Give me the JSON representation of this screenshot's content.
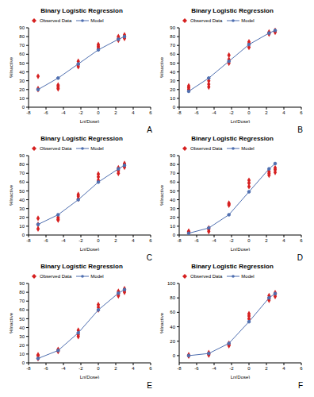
{
  "chart_data": [
    {
      "type": "line",
      "title": "Binary Logistic Regression",
      "annotation": "A",
      "x_label": "Ln(Dose)",
      "y_label": "%Inactive",
      "xlim": [
        -8,
        6
      ],
      "xticks": [
        -8,
        -6,
        -4,
        -2,
        0,
        2,
        4,
        6
      ],
      "ylim": [
        0,
        90
      ],
      "yticks": [
        0,
        10,
        20,
        30,
        40,
        50,
        60,
        70,
        80,
        90
      ],
      "grid": false,
      "legend": "upper left",
      "series": [
        {
          "name": "Observed Data",
          "type": "scatter",
          "color": "#d62020",
          "marker": "diamond",
          "x": [
            -6.91,
            -6.91,
            -6.91,
            -4.61,
            -4.61,
            -4.61,
            -2.3,
            -2.3,
            -2.3,
            0,
            0,
            0,
            2.3,
            2.3,
            2.3,
            3,
            3,
            3
          ],
          "values": [
            20,
            21,
            35,
            21,
            23,
            25,
            46,
            48,
            52,
            67,
            69,
            71,
            76,
            78,
            80,
            78,
            80,
            82
          ]
        },
        {
          "name": "Model",
          "type": "line",
          "color": "#4f6fb0",
          "marker": "circle",
          "x": [
            -6.91,
            -4.61,
            -2.3,
            0,
            2.3,
            3
          ],
          "values": [
            20,
            33,
            49,
            65,
            77,
            80
          ]
        }
      ]
    },
    {
      "type": "line",
      "title": "Binary Logistic Regression",
      "annotation": "B",
      "x_label": "Ln(Dose)",
      "y_label": "%Inactive",
      "xlim": [
        -8,
        6
      ],
      "xticks": [
        -8,
        -6,
        -4,
        -2,
        0,
        2,
        4,
        6
      ],
      "ylim": [
        0,
        90
      ],
      "yticks": [
        0,
        10,
        20,
        30,
        40,
        50,
        60,
        70,
        80,
        90
      ],
      "grid": false,
      "legend": "upper left",
      "series": [
        {
          "name": "Observed Data",
          "type": "scatter",
          "color": "#d62020",
          "marker": "diamond",
          "x": [
            -6.91,
            -6.91,
            -6.91,
            -4.61,
            -4.61,
            -4.61,
            -2.3,
            -2.3,
            -2.3,
            0,
            0,
            0,
            2.3,
            2.3,
            2.3,
            3,
            3,
            3
          ],
          "values": [
            20,
            22,
            24,
            23,
            26,
            30,
            50,
            54,
            59,
            68,
            72,
            74,
            83,
            84,
            85,
            85,
            86,
            87
          ]
        },
        {
          "name": "Model",
          "type": "line",
          "color": "#4f6fb0",
          "marker": "circle",
          "x": [
            -6.91,
            -4.61,
            -2.3,
            0,
            2.3,
            3
          ],
          "values": [
            18,
            33,
            52,
            71,
            84,
            87
          ]
        }
      ]
    },
    {
      "type": "line",
      "title": "Binary Logistic Regression",
      "annotation": "C",
      "x_label": "Ln(Dose)",
      "y_label": "%Inactive",
      "xlim": [
        -8,
        6
      ],
      "xticks": [
        -8,
        -6,
        -4,
        -2,
        0,
        2,
        4,
        6
      ],
      "ylim": [
        0,
        90
      ],
      "yticks": [
        0,
        10,
        20,
        30,
        40,
        50,
        60,
        70,
        80,
        90
      ],
      "grid": false,
      "legend": "upper left",
      "series": [
        {
          "name": "Observed Data",
          "type": "scatter",
          "color": "#d62020",
          "marker": "diamond",
          "x": [
            -6.91,
            -6.91,
            -6.91,
            -4.61,
            -4.61,
            -4.61,
            -2.3,
            -2.3,
            -2.3,
            0,
            0,
            0,
            2.3,
            2.3,
            2.3,
            3,
            3,
            3
          ],
          "values": [
            7,
            12,
            19,
            17,
            18,
            20,
            41,
            44,
            46,
            62,
            66,
            69,
            70,
            73,
            76,
            77,
            80,
            81
          ]
        },
        {
          "name": "Model",
          "type": "line",
          "color": "#4f6fb0",
          "marker": "circle",
          "x": [
            -6.91,
            -4.61,
            -2.3,
            0,
            2.3,
            3
          ],
          "values": [
            12,
            23,
            40,
            60,
            75,
            79
          ]
        }
      ]
    },
    {
      "type": "line",
      "title": "Binary Logistic Regression",
      "annotation": "D",
      "x_label": "Ln(Dose)",
      "y_label": "%Inactive",
      "xlim": [
        -8,
        6
      ],
      "xticks": [
        -8,
        -6,
        -4,
        -2,
        0,
        2,
        4,
        6
      ],
      "ylim": [
        0,
        90
      ],
      "yticks": [
        0,
        10,
        20,
        30,
        40,
        50,
        60,
        70,
        80,
        90
      ],
      "grid": false,
      "legend": "upper left",
      "series": [
        {
          "name": "Observed Data",
          "type": "scatter",
          "color": "#d62020",
          "marker": "diamond",
          "x": [
            -6.91,
            -6.91,
            -6.91,
            -4.61,
            -4.61,
            -4.61,
            -2.3,
            -2.3,
            -2.3,
            0,
            0,
            0,
            2.3,
            2.3,
            2.3,
            3,
            3,
            3
          ],
          "values": [
            3,
            4,
            4,
            4,
            6,
            8,
            34,
            35,
            36,
            55,
            59,
            62,
            68,
            70,
            72,
            71,
            74,
            76
          ]
        },
        {
          "name": "Model",
          "type": "line",
          "color": "#4f6fb0",
          "marker": "circle",
          "x": [
            -6.91,
            -4.61,
            -2.3,
            0,
            2.3,
            3
          ],
          "values": [
            2,
            8,
            23,
            49,
            75,
            81
          ]
        }
      ]
    },
    {
      "type": "line",
      "title": "Binary Logistic Regression",
      "annotation": "E",
      "x_label": "Ln(Dose)",
      "y_label": "%Inactive",
      "xlim": [
        -8,
        6
      ],
      "xticks": [
        -8,
        -6,
        -4,
        -2,
        0,
        2,
        4,
        6
      ],
      "ylim": [
        0,
        90
      ],
      "yticks": [
        0,
        10,
        20,
        30,
        40,
        50,
        60,
        70,
        80,
        90
      ],
      "grid": false,
      "legend": "upper left",
      "series": [
        {
          "name": "Observed Data",
          "type": "scatter",
          "color": "#d62020",
          "marker": "diamond",
          "x": [
            -6.91,
            -6.91,
            -6.91,
            -4.61,
            -4.61,
            -4.61,
            -2.3,
            -2.3,
            -2.3,
            0,
            0,
            0,
            2.3,
            2.3,
            2.3,
            3,
            3,
            3
          ],
          "values": [
            5,
            8,
            9,
            13,
            14,
            15,
            30,
            32,
            37,
            60,
            63,
            66,
            76,
            78,
            81,
            80,
            82,
            84
          ]
        },
        {
          "name": "Model",
          "type": "line",
          "color": "#4f6fb0",
          "marker": "circle",
          "x": [
            -6.91,
            -4.61,
            -2.3,
            0,
            2.3,
            3
          ],
          "values": [
            5,
            14,
            34,
            60,
            79,
            83
          ]
        }
      ]
    },
    {
      "type": "line",
      "title": "Binary Logistic Regression",
      "annotation": "F",
      "x_label": "Ln(Dose)",
      "y_label": "%Inactive",
      "xlim": [
        -8,
        6
      ],
      "xticks": [
        -8,
        -6,
        -4,
        -2,
        0,
        2,
        4,
        6
      ],
      "ylim": [
        -10,
        100
      ],
      "yticks": [
        0,
        20,
        40,
        60,
        80,
        100
      ],
      "grid": false,
      "legend": "upper left",
      "series": [
        {
          "name": "Observed Data",
          "type": "scatter",
          "color": "#d62020",
          "marker": "diamond",
          "x": [
            -6.91,
            -6.91,
            -6.91,
            -4.61,
            -4.61,
            -4.61,
            -2.3,
            -2.3,
            -2.3,
            0,
            0,
            0,
            2.3,
            2.3,
            2.3,
            3,
            3,
            3
          ],
          "values": [
            0,
            0,
            1,
            1,
            2,
            4,
            14,
            15,
            17,
            51,
            55,
            58,
            77,
            80,
            83,
            82,
            85,
            87
          ]
        },
        {
          "name": "Model",
          "type": "line",
          "color": "#4f6fb0",
          "marker": "circle",
          "x": [
            -6.91,
            -4.61,
            -2.3,
            0,
            2.3,
            3
          ],
          "values": [
            0,
            3,
            17,
            47,
            80,
            86
          ]
        }
      ]
    }
  ]
}
